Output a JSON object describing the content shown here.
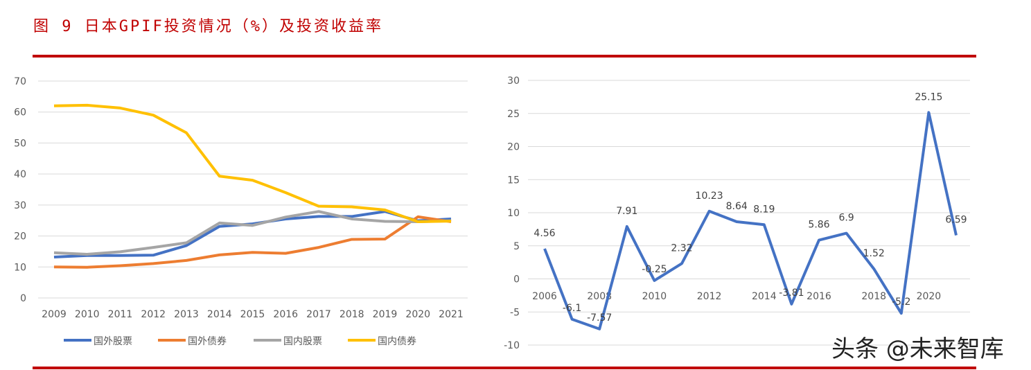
{
  "title": "图 9 日本GPIF投资情况（%）及投资收益率",
  "watermark": "头条 @未来智库",
  "chart_data": [
    {
      "type": "line",
      "categories": [
        "2009",
        "2010",
        "2011",
        "2012",
        "2013",
        "2014",
        "2015",
        "2016",
        "2017",
        "2018",
        "2019",
        "2020",
        "2021"
      ],
      "ylim": [
        0,
        70
      ],
      "yticks": [
        0,
        10,
        20,
        30,
        40,
        50,
        60,
        70
      ],
      "grid": true,
      "legend": "bottom",
      "series": [
        {
          "name": "国外股票",
          "color": "#4472c4",
          "values": [
            13.2,
            13.7,
            13.7,
            13.8,
            16.9,
            23.1,
            23.9,
            25.5,
            26.3,
            26.3,
            27.9,
            24.9,
            25.5
          ]
        },
        {
          "name": "国外债券",
          "color": "#ed7d31",
          "values": [
            10.0,
            9.9,
            10.4,
            11.1,
            12.1,
            13.9,
            14.7,
            14.4,
            16.3,
            18.9,
            19.0,
            26.2,
            24.6
          ]
        },
        {
          "name": "国内股票",
          "color": "#a5a5a5",
          "values": [
            14.6,
            14.1,
            14.9,
            16.3,
            17.8,
            24.2,
            23.4,
            26.1,
            27.9,
            25.5,
            24.7,
            24.6,
            24.9
          ]
        },
        {
          "name": "国内债券",
          "color": "#ffc000",
          "values": [
            62.0,
            62.2,
            61.3,
            59.0,
            53.3,
            39.3,
            38.0,
            34.0,
            29.6,
            29.4,
            28.4,
            24.6,
            24.8
          ]
        }
      ]
    },
    {
      "type": "line",
      "x": [
        2006,
        2007,
        2008,
        2009,
        2010,
        2011,
        2012,
        2013,
        2014,
        2015,
        2016,
        2017,
        2018,
        2019,
        2020,
        2021
      ],
      "xtick_labels": [
        "2006",
        "2008",
        "2010",
        "2012",
        "2014",
        "2016",
        "2018",
        "2020"
      ],
      "ylim": [
        -10,
        30
      ],
      "yticks": [
        -10,
        -5,
        0,
        5,
        10,
        15,
        20,
        25,
        30
      ],
      "grid": true,
      "series": [
        {
          "color": "#4472c4",
          "values": [
            4.56,
            -6.1,
            -7.57,
            7.91,
            -0.25,
            2.32,
            10.23,
            8.64,
            8.19,
            -3.81,
            5.86,
            6.9,
            1.52,
            -5.2,
            25.15,
            6.59
          ],
          "labels": [
            "4.56",
            "-6.1",
            "-7.57",
            "7.91",
            "-0.25",
            "2.32",
            "10.23",
            "8.64",
            "8.19",
            "-3.81",
            "5.86",
            "6.9",
            "1.52",
            "-5.2",
            "25.15",
            "6.59"
          ]
        }
      ]
    }
  ]
}
